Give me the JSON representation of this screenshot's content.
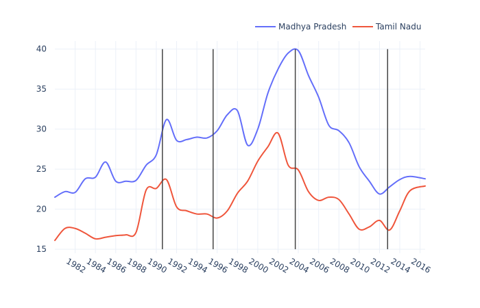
{
  "chart_data": {
    "type": "line",
    "title": "",
    "xlabel": "",
    "ylabel": "",
    "xlim": [
      1980,
      2016.5
    ],
    "ylim": [
      14.5,
      41
    ],
    "xticks": [
      1982,
      1984,
      1986,
      1988,
      1990,
      1992,
      1994,
      1996,
      1998,
      2000,
      2002,
      2004,
      2006,
      2008,
      2010,
      2012,
      2014,
      2016
    ],
    "yticks": [
      15,
      20,
      25,
      30,
      35,
      40
    ],
    "grid": true,
    "legend_position": "top-right",
    "vertical_lines": [
      1990.6,
      1995.6,
      2003.7,
      2012.8
    ],
    "series": [
      {
        "name": "Madhya Pradesh",
        "color": "#636efa",
        "x": [
          1980,
          1981,
          1982,
          1983,
          1984,
          1985,
          1986,
          1987,
          1988,
          1989,
          1990,
          1991,
          1992,
          1993,
          1994,
          1995,
          1996,
          1997,
          1998,
          1999,
          2000,
          2001,
          2002,
          2003,
          2004,
          2005,
          2006,
          2007,
          2008,
          2009,
          2010,
          2011,
          2012,
          2013,
          2014,
          2015,
          2016.5
        ],
        "y": [
          21.5,
          22.2,
          22.1,
          23.8,
          24.0,
          25.9,
          23.5,
          23.5,
          23.6,
          25.5,
          26.8,
          31.2,
          28.6,
          28.7,
          29.0,
          28.9,
          29.8,
          31.8,
          32.3,
          28.0,
          30.0,
          34.5,
          37.5,
          39.5,
          39.8,
          36.7,
          34.0,
          30.5,
          29.8,
          28.3,
          25.3,
          23.5,
          21.9,
          22.8,
          23.7,
          24.1,
          23.8
        ]
      },
      {
        "name": "Tamil Nadu",
        "color": "#ef553b",
        "x": [
          1980,
          1981,
          1982,
          1983,
          1984,
          1985,
          1986,
          1987,
          1988,
          1989,
          1990,
          1991,
          1992,
          1993,
          1994,
          1995,
          1996,
          1997,
          1998,
          1999,
          2000,
          2001,
          2002,
          2003,
          2004,
          2005,
          2006,
          2007,
          2008,
          2009,
          2010,
          2011,
          2012,
          2013,
          2014,
          2015,
          2016.5
        ],
        "y": [
          16.1,
          17.6,
          17.6,
          17.0,
          16.3,
          16.5,
          16.7,
          16.8,
          17.1,
          22.4,
          22.6,
          23.7,
          20.3,
          19.8,
          19.4,
          19.4,
          18.9,
          19.8,
          22.0,
          23.5,
          26.0,
          27.8,
          29.5,
          25.5,
          24.9,
          22.2,
          21.1,
          21.5,
          21.2,
          19.4,
          17.5,
          17.8,
          18.6,
          17.4,
          19.8,
          22.3,
          22.9
        ]
      }
    ]
  }
}
